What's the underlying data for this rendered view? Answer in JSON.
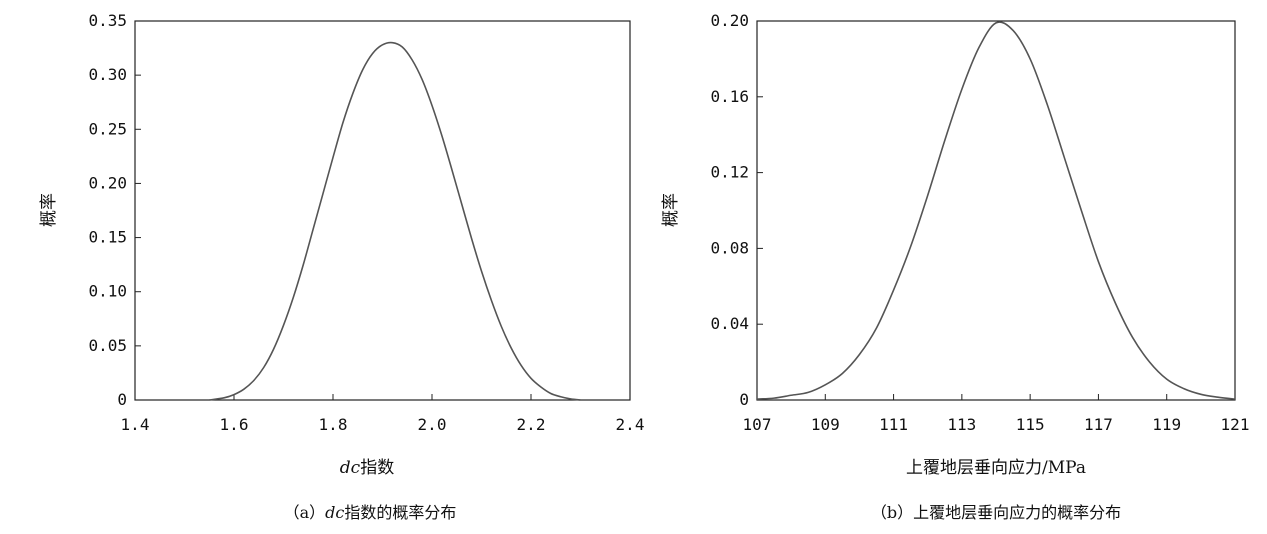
{
  "chart_data": [
    {
      "type": "line",
      "caption_prefix": "（a）",
      "caption_italic": "dc",
      "caption_rest": "指数的概率分布",
      "xlabel_italic": "dc",
      "xlabel_rest": "指数",
      "ylabel": "概率",
      "xlim": [
        1.4,
        2.4
      ],
      "ylim": [
        0,
        0.35
      ],
      "xticks": [
        1.4,
        1.6,
        1.8,
        2.0,
        2.2,
        2.4
      ],
      "xtick_labels": [
        "1.4",
        "1.6",
        "1.8",
        "2.0",
        "2.2",
        "2.4"
      ],
      "yticks": [
        0,
        0.05,
        0.1,
        0.15,
        0.2,
        0.25,
        0.3,
        0.35
      ],
      "ytick_labels": [
        "0",
        "0.05",
        "0.10",
        "0.15",
        "0.20",
        "0.25",
        "0.30",
        "0.35"
      ],
      "series": [
        {
          "x": [
            1.55,
            1.58,
            1.6,
            1.62,
            1.64,
            1.66,
            1.68,
            1.7,
            1.72,
            1.74,
            1.76,
            1.78,
            1.8,
            1.82,
            1.84,
            1.86,
            1.88,
            1.9,
            1.92,
            1.94,
            1.96,
            1.98,
            2.0,
            2.02,
            2.04,
            2.06,
            2.08,
            2.1,
            2.12,
            2.14,
            2.16,
            2.18,
            2.2,
            2.22,
            2.24,
            2.26,
            2.28,
            2.3
          ],
          "y": [
            0.0,
            0.002,
            0.005,
            0.01,
            0.018,
            0.03,
            0.047,
            0.069,
            0.095,
            0.125,
            0.158,
            0.191,
            0.224,
            0.256,
            0.283,
            0.305,
            0.32,
            0.328,
            0.33,
            0.326,
            0.314,
            0.296,
            0.272,
            0.244,
            0.213,
            0.181,
            0.149,
            0.119,
            0.092,
            0.068,
            0.048,
            0.032,
            0.02,
            0.012,
            0.006,
            0.003,
            0.001,
            0.0
          ]
        }
      ]
    },
    {
      "type": "line",
      "caption_prefix": "（b）",
      "caption_italic": "",
      "caption_rest": "上覆地层垂向应力的概率分布",
      "xlabel_italic": "",
      "xlabel_rest": "上覆地层垂向应力/MPa",
      "ylabel": "概率",
      "xlim": [
        107,
        121
      ],
      "ylim": [
        0,
        0.2
      ],
      "xticks": [
        107,
        109,
        111,
        113,
        115,
        117,
        119,
        121
      ],
      "xtick_labels": [
        "107",
        "109",
        "111",
        "113",
        "115",
        "117",
        "119",
        "121"
      ],
      "yticks": [
        0,
        0.04,
        0.08,
        0.12,
        0.16,
        0.2
      ],
      "ytick_labels": [
        "0",
        "0.04",
        "0.08",
        "0.12",
        "0.16",
        "0.20"
      ],
      "series": [
        {
          "x": [
            107,
            107.5,
            108,
            108.5,
            109,
            109.5,
            110,
            110.5,
            111,
            111.5,
            112,
            112.5,
            113,
            113.5,
            114,
            114.5,
            115,
            115.5,
            116,
            116.5,
            117,
            117.5,
            118,
            118.5,
            119,
            119.5,
            120,
            120.5,
            121
          ],
          "y": [
            0.0005,
            0.001,
            0.0025,
            0.004,
            0.008,
            0.014,
            0.024,
            0.038,
            0.058,
            0.081,
            0.108,
            0.137,
            0.164,
            0.186,
            0.199,
            0.195,
            0.18,
            0.156,
            0.128,
            0.1,
            0.073,
            0.051,
            0.033,
            0.02,
            0.011,
            0.006,
            0.003,
            0.0015,
            0.0005
          ]
        }
      ]
    }
  ]
}
